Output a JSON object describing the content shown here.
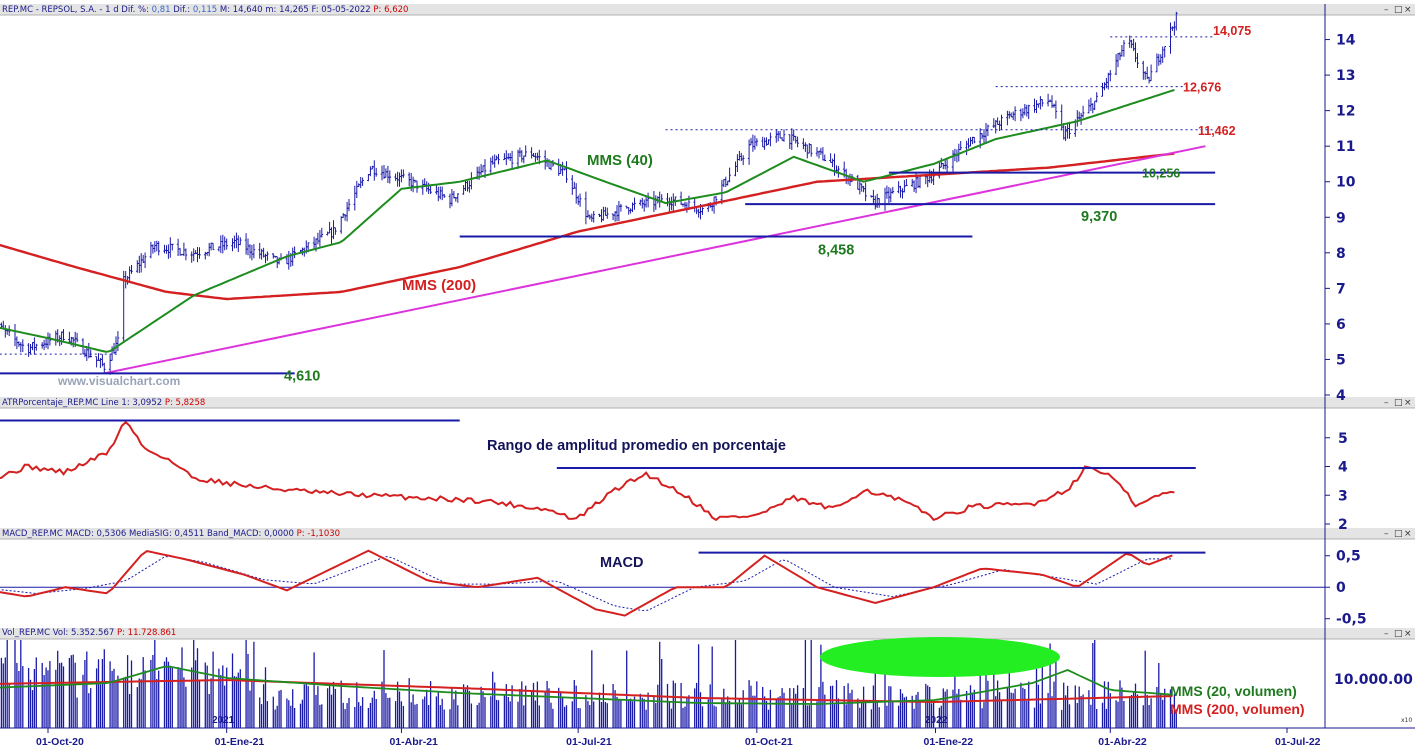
{
  "colors": {
    "price": "#1a1aa8",
    "sma40": "#1e8c1e",
    "sma200": "#d42020",
    "trendline": "#dd33dd",
    "level": "#1a1aa8",
    "ellipse": "#22ee22",
    "axis_text": "#1a1a8c"
  },
  "icons": [
    "minimize-icon",
    "maximize-icon",
    "close-icon"
  ],
  "panels": {
    "price": {
      "header_parts": [
        {
          "text": "REP.MC - REPSOL, S.A. - 1 d Dif. %: ",
          "color": "dark"
        },
        {
          "text": "0,81",
          "color": "blue"
        },
        {
          "text": " Dif.: ",
          "color": "dark"
        },
        {
          "text": "0,115",
          "color": "blue"
        },
        {
          "text": " M: 14,640 m: 14,265 F: 05-05-2022 ",
          "color": "dark"
        },
        {
          "text": "P: 6,620",
          "color": "red"
        }
      ],
      "watermark": "www.visualchart.com"
    },
    "atr": {
      "header_parts": [
        {
          "text": "ATRPorcentaje_REP.MC Line 1: 3,0952 ",
          "color": "dark"
        },
        {
          "text": "P: 5,8258",
          "color": "red"
        }
      ]
    },
    "macd": {
      "header_parts": [
        {
          "text": "MACD_REP.MC MACD: 0,5306 MediaSIG: 0,4511 Band_MACD: 0,0000 ",
          "color": "dark"
        },
        {
          "text": "P: -1,1030",
          "color": "red"
        }
      ]
    },
    "volume": {
      "header_parts": [
        {
          "text": "Vol_REP.MC Vol: 5.352.567 ",
          "color": "dark"
        },
        {
          "text": "P: 11.728.861",
          "color": "red"
        }
      ],
      "corner_tag": "x10"
    }
  },
  "x_axis": {
    "labels": [
      "01-Oct-20",
      "01-Ene-21",
      "01-Abr-21",
      "01-Jul-21",
      "01-Oct-21",
      "01-Ene-22",
      "01-Abr-22",
      "01-Jul-22"
    ],
    "year_marks": [
      "2021",
      "2022"
    ]
  },
  "chart_data": [
    {
      "type": "candlestick",
      "panel": "price",
      "title": "REP.MC - REPSOL, S.A. - 1 d",
      "ylim": [
        4,
        15
      ],
      "yticks": [
        "4",
        "5",
        "6",
        "7",
        "8",
        "9",
        "10",
        "11",
        "12",
        "13",
        "14"
      ],
      "price_path": [
        [
          "2020-09-01",
          6.1
        ],
        [
          "2020-09-20",
          5.3
        ],
        [
          "2020-10-10",
          5.7
        ],
        [
          "2020-10-30",
          4.8
        ],
        [
          "2020-11-06",
          5.5
        ],
        [
          "2020-11-09",
          7.2
        ],
        [
          "2020-11-25",
          8.2
        ],
        [
          "2020-12-15",
          8.0
        ],
        [
          "2021-01-05",
          8.3
        ],
        [
          "2021-01-29",
          7.7
        ],
        [
          "2021-02-25",
          8.6
        ],
        [
          "2021-03-16",
          10.4
        ],
        [
          "2021-04-05",
          10.0
        ],
        [
          "2021-04-26",
          9.5
        ],
        [
          "2021-05-17",
          10.5
        ],
        [
          "2021-06-07",
          10.8
        ],
        [
          "2021-06-25",
          10.2
        ],
        [
          "2021-07-07",
          8.9
        ],
        [
          "2021-07-27",
          9.3
        ],
        [
          "2021-08-17",
          9.5
        ],
        [
          "2021-09-05",
          9.2
        ],
        [
          "2021-09-27",
          11.0
        ],
        [
          "2021-10-15",
          11.3
        ],
        [
          "2021-11-04",
          10.7
        ],
        [
          "2021-11-20",
          10.0
        ],
        [
          "2021-11-30",
          9.4
        ],
        [
          "2021-12-15",
          9.8
        ],
        [
          "2021-12-31",
          10.2
        ],
        [
          "2022-01-20",
          11.2
        ],
        [
          "2022-02-10",
          11.9
        ],
        [
          "2022-03-01",
          12.3
        ],
        [
          "2022-03-08",
          11.3
        ],
        [
          "2022-03-25",
          12.3
        ],
        [
          "2022-04-10",
          14.0
        ],
        [
          "2022-04-20",
          12.8
        ],
        [
          "2022-05-05",
          14.6
        ]
      ],
      "sma40_path": [
        [
          "2020-09-01",
          5.95
        ],
        [
          "2020-10-01",
          5.6
        ],
        [
          "2020-11-01",
          5.2
        ],
        [
          "2020-12-15",
          6.8
        ],
        [
          "2021-02-01",
          7.9
        ],
        [
          "2021-03-01",
          8.3
        ],
        [
          "2021-04-01",
          9.8
        ],
        [
          "2021-05-01",
          10.0
        ],
        [
          "2021-06-15",
          10.6
        ],
        [
          "2021-07-15",
          10.0
        ],
        [
          "2021-08-15",
          9.4
        ],
        [
          "2021-09-15",
          9.7
        ],
        [
          "2021-10-20",
          10.7
        ],
        [
          "2021-11-25",
          10.0
        ],
        [
          "2021-12-31",
          10.5
        ],
        [
          "2022-02-01",
          11.2
        ],
        [
          "2022-03-15",
          11.7
        ],
        [
          "2022-05-05",
          12.6
        ]
      ],
      "sma200_path": [
        [
          "2020-09-01",
          8.3
        ],
        [
          "2020-10-15",
          7.6
        ],
        [
          "2020-12-01",
          6.9
        ],
        [
          "2021-01-01",
          6.7
        ],
        [
          "2021-03-01",
          6.9
        ],
        [
          "2021-05-01",
          7.6
        ],
        [
          "2021-07-01",
          8.6
        ],
        [
          "2021-09-01",
          9.3
        ],
        [
          "2021-11-01",
          10.0
        ],
        [
          "2022-01-01",
          10.2
        ],
        [
          "2022-03-01",
          10.4
        ],
        [
          "2022-05-05",
          10.8
        ]
      ],
      "trendline": [
        [
          "2020-10-30",
          4.61
        ],
        [
          "2022-05-20",
          11.0
        ]
      ],
      "levels": [
        {
          "label": "14,075",
          "value": 14.075,
          "from": "2022-04-01",
          "to": "2022-05-25",
          "style": "dotted",
          "label_color": "red"
        },
        {
          "label": "12,676",
          "value": 12.676,
          "from": "2022-02-01",
          "to": "2022-05-10",
          "style": "dotted",
          "label_color": "red"
        },
        {
          "label": "11,462",
          "value": 11.462,
          "from": "2021-08-15",
          "to": "2022-05-25",
          "style": "dotted",
          "label_color": "red"
        },
        {
          "label": "10,256",
          "value": 10.256,
          "from": "2021-12-08",
          "to": "2022-05-25",
          "style": "solid",
          "label_color": "green"
        },
        {
          "label": "9,370",
          "value": 9.37,
          "from": "2021-09-25",
          "to": "2022-05-25",
          "style": "solid",
          "label_color": "green"
        },
        {
          "label": "8,458",
          "value": 8.458,
          "from": "2021-05-01",
          "to": "2022-01-20",
          "style": "solid",
          "label_color": "green"
        },
        {
          "label": "4,610",
          "value": 4.61,
          "from": "2020-09-01",
          "to": "2021-02-05",
          "style": "solid",
          "label_color": "green"
        },
        {
          "label": "",
          "value": 5.15,
          "from": "2020-09-01",
          "to": "2020-11-06",
          "style": "dotted",
          "label_color": "none"
        }
      ],
      "series_labels": [
        {
          "text": "MMS (40)",
          "color": "green"
        },
        {
          "text": "MMS (200)",
          "color": "red"
        }
      ]
    },
    {
      "type": "line",
      "panel": "atr",
      "title": "ATRPorcentaje_REP.MC",
      "annotation": "Rango de amplitud promedio en porcentaje",
      "ylim": [
        2,
        6
      ],
      "yticks": [
        "2",
        "3",
        "4",
        "5"
      ],
      "series": [
        {
          "values_path": [
            [
              "2020-09-01",
              3.5
            ],
            [
              "2020-09-20",
              4.0
            ],
            [
              "2020-10-10",
              3.8
            ],
            [
              "2020-11-01",
              4.5
            ],
            [
              "2020-11-10",
              5.6
            ],
            [
              "2020-11-20",
              4.6
            ],
            [
              "2020-12-01",
              4.3
            ],
            [
              "2020-12-15",
              3.6
            ],
            [
              "2021-01-15",
              3.3
            ],
            [
              "2021-02-15",
              3.1
            ],
            [
              "2021-03-15",
              3.0
            ],
            [
              "2021-04-15",
              2.9
            ],
            [
              "2021-05-15",
              2.8
            ],
            [
              "2021-06-15",
              2.5
            ],
            [
              "2021-06-30",
              2.15
            ],
            [
              "2021-07-20",
              3.2
            ],
            [
              "2021-08-05",
              3.75
            ],
            [
              "2021-08-25",
              3.0
            ],
            [
              "2021-09-10",
              2.2
            ],
            [
              "2021-10-01",
              2.3
            ],
            [
              "2021-10-20",
              2.9
            ],
            [
              "2021-11-10",
              2.5
            ],
            [
              "2021-11-25",
              3.2
            ],
            [
              "2021-12-15",
              2.8
            ],
            [
              "2022-01-01",
              2.2
            ],
            [
              "2022-01-20",
              2.6
            ],
            [
              "2022-02-20",
              2.7
            ],
            [
              "2022-03-10",
              3.2
            ],
            [
              "2022-03-20",
              4.0
            ],
            [
              "2022-04-01",
              3.7
            ],
            [
              "2022-04-15",
              2.6
            ],
            [
              "2022-04-25",
              3.0
            ],
            [
              "2022-05-05",
              3.1
            ]
          ]
        }
      ],
      "levels": [
        {
          "value": 5.6,
          "from": "2020-09-01",
          "to": "2021-05-01"
        },
        {
          "value": 3.95,
          "from": "2021-06-20",
          "to": "2022-05-15"
        }
      ]
    },
    {
      "type": "line",
      "panel": "macd",
      "title": "MACD_REP.MC",
      "annotation": "MACD",
      "ylim": [
        -0.6,
        0.75
      ],
      "yticks": [
        "0,5",
        "0",
        "-0,5"
      ],
      "series": [
        {
          "role": "macd",
          "values_path": [
            [
              "2020-09-01",
              -0.05
            ],
            [
              "2020-09-20",
              -0.15
            ],
            [
              "2020-10-10",
              0.0
            ],
            [
              "2020-11-01",
              -0.1
            ],
            [
              "2020-11-20",
              0.58
            ],
            [
              "2020-12-10",
              0.45
            ],
            [
              "2021-01-10",
              0.2
            ],
            [
              "2021-02-01",
              -0.05
            ],
            [
              "2021-03-15",
              0.58
            ],
            [
              "2021-04-15",
              0.1
            ],
            [
              "2021-05-10",
              0.0
            ],
            [
              "2021-06-10",
              0.15
            ],
            [
              "2021-07-10",
              -0.35
            ],
            [
              "2021-07-25",
              -0.45
            ],
            [
              "2021-08-20",
              0.0
            ],
            [
              "2021-09-15",
              0.0
            ],
            [
              "2021-10-05",
              0.5
            ],
            [
              "2021-11-01",
              0.0
            ],
            [
              "2021-12-01",
              -0.25
            ],
            [
              "2021-12-31",
              0.0
            ],
            [
              "2022-01-25",
              0.3
            ],
            [
              "2022-02-25",
              0.2
            ],
            [
              "2022-03-15",
              0.0
            ],
            [
              "2022-04-10",
              0.55
            ],
            [
              "2022-04-20",
              0.35
            ],
            [
              "2022-05-05",
              0.53
            ]
          ]
        },
        {
          "role": "signal",
          "values_path": [
            [
              "2020-09-01",
              -0.02
            ],
            [
              "2020-09-25",
              -0.1
            ],
            [
              "2020-10-20",
              -0.02
            ],
            [
              "2020-11-10",
              0.1
            ],
            [
              "2020-12-01",
              0.5
            ],
            [
              "2020-12-20",
              0.4
            ],
            [
              "2021-01-20",
              0.12
            ],
            [
              "2021-02-15",
              0.05
            ],
            [
              "2021-03-25",
              0.5
            ],
            [
              "2021-04-25",
              0.05
            ],
            [
              "2021-05-20",
              0.05
            ],
            [
              "2021-06-20",
              0.1
            ],
            [
              "2021-07-20",
              -0.3
            ],
            [
              "2021-08-05",
              -0.38
            ],
            [
              "2021-08-30",
              0.0
            ],
            [
              "2021-09-25",
              0.1
            ],
            [
              "2021-10-15",
              0.45
            ],
            [
              "2021-11-10",
              0.0
            ],
            [
              "2021-12-10",
              -0.15
            ],
            [
              "2022-01-10",
              0.05
            ],
            [
              "2022-02-05",
              0.28
            ],
            [
              "2022-03-05",
              0.15
            ],
            [
              "2022-03-25",
              0.05
            ],
            [
              "2022-04-20",
              0.45
            ],
            [
              "2022-05-05",
              0.45
            ]
          ]
        }
      ],
      "levels": [
        {
          "value": 0.55,
          "from": "2021-09-01",
          "to": "2022-05-20"
        }
      ]
    },
    {
      "type": "bar",
      "panel": "volume",
      "title": "Vol_REP.MC",
      "yticks": [
        "10.000.00"
      ],
      "series": [
        {
          "name": "MMS (20, volumen)",
          "color": "green"
        },
        {
          "name": "MMS (200, volumen)",
          "color": "red"
        }
      ]
    }
  ]
}
